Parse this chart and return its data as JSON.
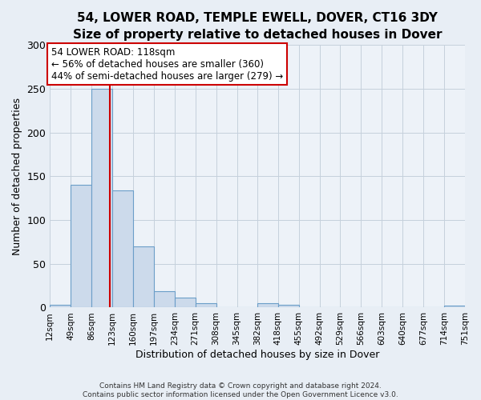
{
  "title": "54, LOWER ROAD, TEMPLE EWELL, DOVER, CT16 3DY",
  "subtitle": "Size of property relative to detached houses in Dover",
  "xlabel": "Distribution of detached houses by size in Dover",
  "ylabel": "Number of detached properties",
  "bar_edges": [
    12,
    49,
    86,
    123,
    160,
    197,
    234,
    271,
    308,
    345,
    382,
    418,
    455,
    492,
    529,
    566,
    603,
    640,
    677,
    714,
    751
  ],
  "bar_heights": [
    3,
    140,
    250,
    134,
    70,
    19,
    11,
    5,
    0,
    0,
    5,
    3,
    0,
    0,
    0,
    0,
    0,
    0,
    0,
    2
  ],
  "bar_color": "#ccdaeb",
  "bar_edge_color": "#6b9ec8",
  "property_line_x": 118,
  "property_line_color": "#cc0000",
  "annotation_title": "54 LOWER ROAD: 118sqm",
  "annotation_line1": "← 56% of detached houses are smaller (360)",
  "annotation_line2": "44% of semi-detached houses are larger (279) →",
  "annotation_box_facecolor": "#ffffff",
  "annotation_box_edgecolor": "#cc0000",
  "ylim": [
    0,
    300
  ],
  "yticks": [
    0,
    50,
    100,
    150,
    200,
    250,
    300
  ],
  "tick_labels": [
    "12sqm",
    "49sqm",
    "86sqm",
    "123sqm",
    "160sqm",
    "197sqm",
    "234sqm",
    "271sqm",
    "308sqm",
    "345sqm",
    "382sqm",
    "418sqm",
    "455sqm",
    "492sqm",
    "529sqm",
    "566sqm",
    "603sqm",
    "640sqm",
    "677sqm",
    "714sqm",
    "751sqm"
  ],
  "footer_line1": "Contains HM Land Registry data © Crown copyright and database right 2024.",
  "footer_line2": "Contains public sector information licensed under the Open Government Licence v3.0.",
  "bg_color": "#e8eef5",
  "plot_bg_color": "#edf2f8",
  "grid_color": "#c5d0dc",
  "title_fontsize": 11,
  "subtitle_fontsize": 10,
  "xlabel_fontsize": 9,
  "ylabel_fontsize": 9,
  "ytick_fontsize": 9,
  "xtick_fontsize": 7.5,
  "annotation_fontsize": 8.5,
  "footer_fontsize": 6.5
}
